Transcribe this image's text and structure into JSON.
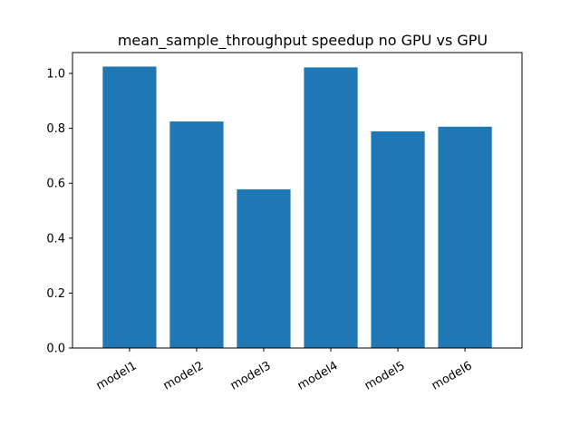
{
  "chart_data": {
    "type": "bar",
    "title": "mean_sample_throughput speedup no GPU vs GPU",
    "xlabel": "",
    "ylabel": "",
    "categories": [
      "model1",
      "model2",
      "model3",
      "model4",
      "model5",
      "model6"
    ],
    "values": [
      1.025,
      0.825,
      0.578,
      1.022,
      0.789,
      0.806
    ],
    "ylim": [
      0,
      1.076
    ],
    "yticks": [
      "0.0",
      "0.2",
      "0.4",
      "0.6",
      "0.8",
      "1.0"
    ],
    "bar_color": "#1f77b4",
    "grid": false,
    "legend": "none",
    "x_tick_rotation": "30 degrees"
  }
}
